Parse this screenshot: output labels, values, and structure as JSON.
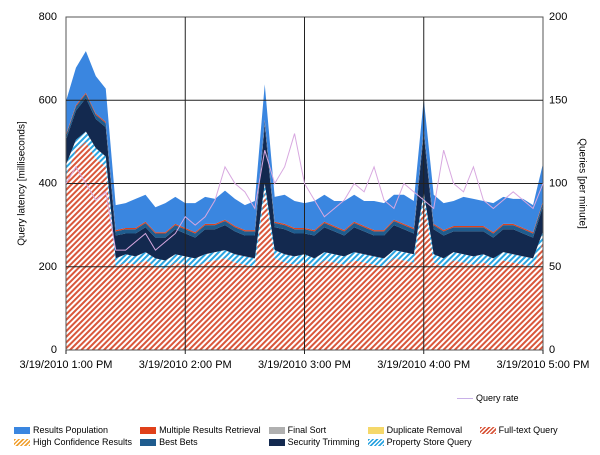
{
  "chart_data": {
    "type": "area",
    "stacked": true,
    "xlabel": "",
    "ylabel": "Query latency [milliseconds]",
    "y2label": "Queries [per minute]",
    "ylim": [
      0,
      800
    ],
    "y2lim": [
      0,
      200
    ],
    "yticks": [
      "0",
      "200",
      "400",
      "600",
      "800"
    ],
    "y2ticks": [
      "0",
      "50",
      "100",
      "150",
      "200"
    ],
    "xticks": [
      "3/19/2010 1:00 PM",
      "3/19/2010 2:00 PM",
      "3/19/2010 3:00 PM",
      "3/19/2010 4:00 PM",
      "3/19/2010 5:00 PM"
    ],
    "grid": true,
    "legend_placement": "bottom",
    "x": [
      "13:00",
      "13:05",
      "13:10",
      "13:15",
      "13:20",
      "13:25",
      "13:30",
      "13:35",
      "13:40",
      "13:45",
      "13:50",
      "13:55",
      "14:00",
      "14:05",
      "14:10",
      "14:15",
      "14:20",
      "14:25",
      "14:30",
      "14:35",
      "14:40",
      "14:45",
      "14:50",
      "14:55",
      "15:00",
      "15:05",
      "15:10",
      "15:15",
      "15:20",
      "15:25",
      "15:30",
      "15:35",
      "15:40",
      "15:45",
      "15:50",
      "15:55",
      "16:00",
      "16:05",
      "16:10",
      "16:15",
      "16:20",
      "16:25",
      "16:30",
      "16:35",
      "16:40",
      "16:45",
      "16:50",
      "16:55",
      "17:00"
    ],
    "series": [
      {
        "name": "Full-text Query",
        "color": "#d9573b",
        "pattern": "hatch",
        "values": [
          420,
          480,
          500,
          460,
          440,
          200,
          210,
          205,
          215,
          200,
          195,
          210,
          205,
          200,
          210,
          215,
          220,
          210,
          205,
          200,
          380,
          220,
          210,
          205,
          210,
          200,
          215,
          210,
          205,
          215,
          210,
          205,
          200,
          220,
          215,
          210,
          360,
          210,
          200,
          215,
          210,
          205,
          210,
          200,
          215,
          210,
          205,
          200,
          260
        ]
      },
      {
        "name": "Property Store Query",
        "color": "#29a3e0",
        "pattern": "hatch",
        "values": [
          25,
          25,
          25,
          25,
          25,
          20,
          20,
          20,
          20,
          20,
          20,
          20,
          20,
          20,
          20,
          20,
          20,
          20,
          20,
          20,
          20,
          20,
          20,
          20,
          20,
          20,
          20,
          20,
          20,
          20,
          20,
          20,
          20,
          20,
          20,
          20,
          20,
          20,
          20,
          20,
          20,
          20,
          20,
          20,
          20,
          20,
          20,
          20,
          25
        ]
      },
      {
        "name": "Security Trimming",
        "color": "#13294f",
        "values": [
          60,
          70,
          80,
          70,
          70,
          55,
          50,
          55,
          60,
          50,
          55,
          60,
          55,
          50,
          60,
          55,
          60,
          55,
          50,
          55,
          140,
          55,
          60,
          55,
          50,
          55,
          60,
          55,
          50,
          60,
          55,
          50,
          55,
          60,
          55,
          50,
          140,
          60,
          55,
          50,
          55,
          60,
          55,
          50,
          55,
          60,
          55,
          50,
          60
        ]
      },
      {
        "name": "Best Bets",
        "color": "#1f5c8e",
        "values": [
          10,
          10,
          10,
          10,
          10,
          10,
          10,
          10,
          10,
          10,
          10,
          10,
          10,
          10,
          10,
          10,
          10,
          10,
          10,
          10,
          10,
          10,
          10,
          10,
          10,
          10,
          10,
          10,
          10,
          10,
          10,
          10,
          10,
          10,
          10,
          10,
          10,
          10,
          10,
          10,
          10,
          10,
          10,
          10,
          10,
          10,
          10,
          10,
          10
        ]
      },
      {
        "name": "Multiple Results Retrieval",
        "color": "#e0401a",
        "values": [
          3,
          3,
          3,
          3,
          3,
          3,
          3,
          3,
          3,
          3,
          3,
          3,
          3,
          3,
          3,
          3,
          3,
          3,
          3,
          3,
          3,
          3,
          3,
          3,
          3,
          3,
          3,
          3,
          3,
          3,
          3,
          3,
          3,
          3,
          3,
          3,
          3,
          3,
          3,
          3,
          3,
          3,
          3,
          3,
          3,
          3,
          3,
          3,
          3
        ]
      },
      {
        "name": "Results Population",
        "color": "#3a86e0",
        "values": [
          80,
          90,
          100,
          90,
          80,
          60,
          60,
          70,
          65,
          60,
          70,
          65,
          60,
          70,
          65,
          60,
          70,
          65,
          60,
          70,
          85,
          60,
          70,
          65,
          60,
          70,
          65,
          60,
          70,
          65,
          60,
          70,
          65,
          60,
          70,
          65,
          70,
          70,
          65,
          60,
          70,
          65,
          60,
          70,
          65,
          60,
          70,
          65,
          90
        ]
      },
      {
        "name": "High Confidence Results",
        "color": "#f0a030",
        "pattern": "hatch",
        "values": [
          0,
          0,
          0,
          0,
          0,
          0,
          0,
          0,
          0,
          0,
          0,
          0,
          0,
          0,
          0,
          0,
          0,
          0,
          0,
          0,
          0,
          0,
          0,
          0,
          0,
          0,
          0,
          0,
          0,
          0,
          0,
          0,
          0,
          0,
          0,
          0,
          0,
          0,
          0,
          0,
          0,
          0,
          0,
          0,
          0,
          0,
          0,
          0,
          0
        ]
      },
      {
        "name": "Final Sort",
        "color": "#b0b0b0",
        "values": [
          0,
          0,
          0,
          0,
          0,
          0,
          0,
          0,
          0,
          0,
          0,
          0,
          0,
          0,
          0,
          0,
          0,
          0,
          0,
          0,
          0,
          0,
          0,
          0,
          0,
          0,
          0,
          0,
          0,
          0,
          0,
          0,
          0,
          0,
          0,
          0,
          0,
          0,
          0,
          0,
          0,
          0,
          0,
          0,
          0,
          0,
          0,
          0,
          0
        ]
      },
      {
        "name": "Duplicate Removal",
        "color": "#f5d86a",
        "values": [
          0,
          0,
          0,
          0,
          0,
          0,
          0,
          0,
          0,
          0,
          0,
          0,
          0,
          0,
          0,
          0,
          0,
          0,
          0,
          0,
          0,
          0,
          0,
          0,
          0,
          0,
          0,
          0,
          0,
          0,
          0,
          0,
          0,
          0,
          0,
          0,
          0,
          0,
          0,
          0,
          0,
          0,
          0,
          0,
          0,
          0,
          0,
          0,
          0
        ]
      }
    ],
    "line_series": {
      "name": "Query rate",
      "color": "#d8a8e0",
      "axis": "right",
      "values": [
        100,
        110,
        100,
        90,
        95,
        60,
        60,
        65,
        70,
        60,
        65,
        70,
        80,
        75,
        80,
        90,
        110,
        100,
        95,
        85,
        120,
        100,
        110,
        130,
        100,
        90,
        80,
        85,
        90,
        100,
        95,
        110,
        90,
        85,
        100,
        95,
        90,
        85,
        120,
        100,
        95,
        110,
        90,
        85,
        90,
        95,
        90,
        85,
        100
      ]
    },
    "legend": [
      "Results Population",
      "High Confidence Results",
      "Multiple Results Retrieval",
      "Best Bets",
      "Final Sort",
      "Security Trimming",
      "Duplicate Removal",
      "Property Store Query",
      "Full-text Query"
    ]
  }
}
